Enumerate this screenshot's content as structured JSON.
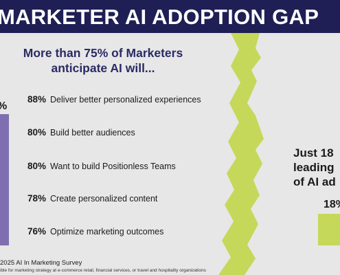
{
  "banner": {
    "title": "MARKETER AI ADOPTION GAP"
  },
  "chart_data": {
    "type": "bar",
    "title": "More than 75% of Marketers anticipate AI will...",
    "title_lines": [
      "More than 75% of Marketers",
      "anticipate AI will..."
    ],
    "left_bar": {
      "label": "%",
      "color": "#7f6fb0"
    },
    "right_bar": {
      "label": "18%",
      "value": 18,
      "color": "#c6d85a"
    },
    "items": [
      {
        "value": 88,
        "value_label": "88%",
        "label": "Deliver better personalized experiences"
      },
      {
        "value": 80,
        "value_label": "80%",
        "label": "Build better audiences"
      },
      {
        "value": 80,
        "value_label": "80%",
        "label": "Want to build Positionless Teams"
      },
      {
        "value": 78,
        "value_label": "78%",
        "label": "Create personalized content"
      },
      {
        "value": 76,
        "value_label": "76%",
        "label": "Optimize marketing outcomes"
      }
    ],
    "right_text_lines": [
      "Just 18",
      "leading",
      "of AI ad"
    ]
  },
  "footer": {
    "title": "2025 AI In Marketing Survey",
    "note": "ible for marketing strategy at e-commerce retail, financial services, or travel and hospitality organizations"
  },
  "colors": {
    "banner": "#1f1f55",
    "accent_purple": "#7f6fb0",
    "accent_green": "#c6d85a",
    "background": "#e7e7e7"
  }
}
